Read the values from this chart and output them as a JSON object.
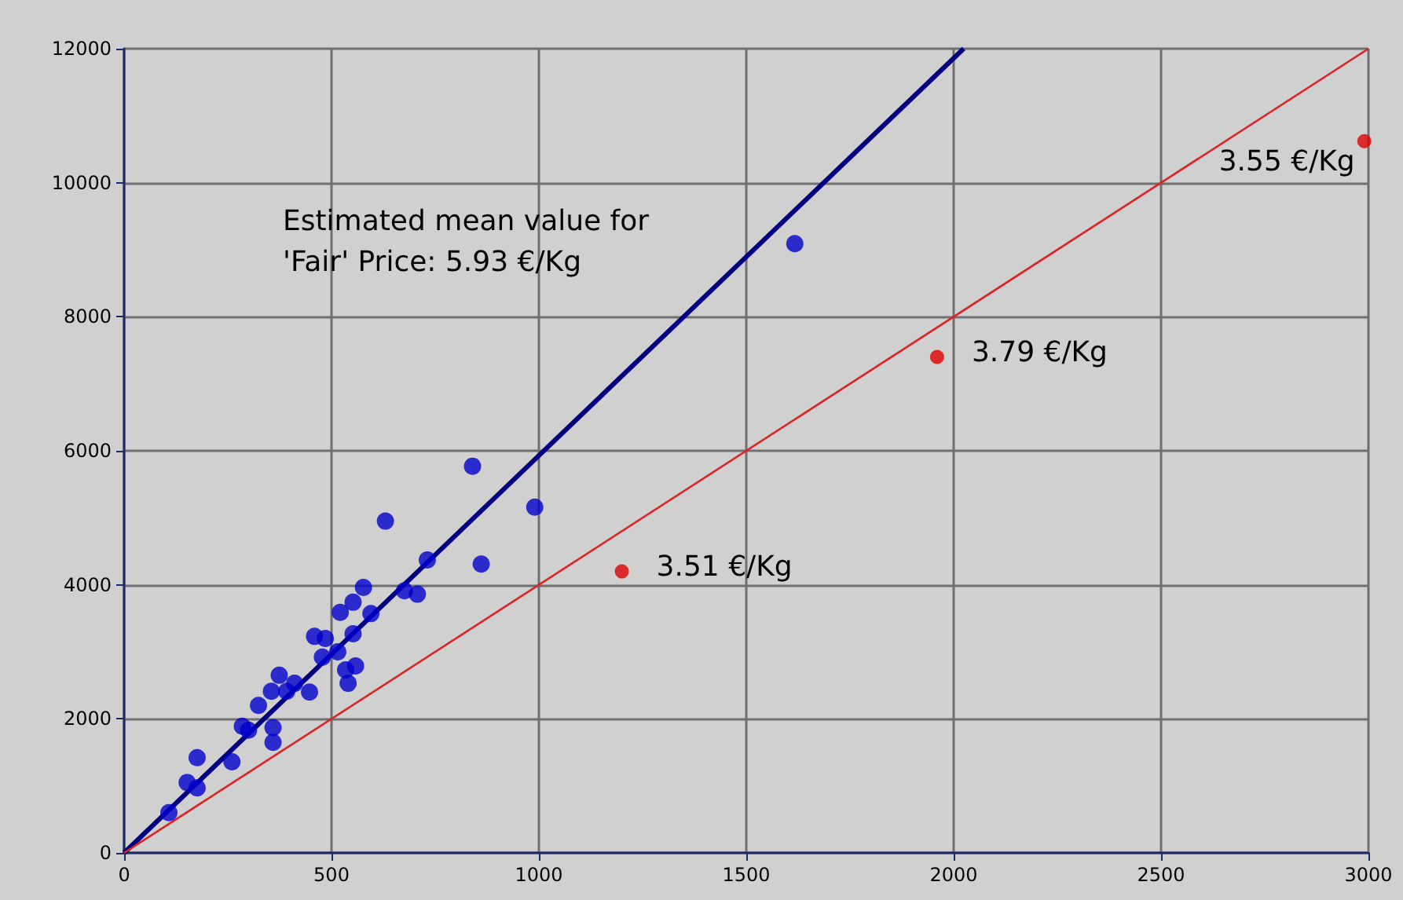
{
  "chart_data": {
    "type": "scatter",
    "xlim": [
      0,
      3000
    ],
    "xticks": [
      0,
      500,
      1000,
      1500,
      2000,
      2500,
      3000
    ],
    "ylim": [
      0,
      12000
    ],
    "yticks": [
      0,
      2000,
      4000,
      6000,
      8000,
      10000,
      12000
    ],
    "grid": true,
    "marker": "circle",
    "series": [
      {
        "type": "line",
        "color": "#000080",
        "x": [
          0,
          2024
        ],
        "values": [
          0,
          12000
        ],
        "marker": "none"
      },
      {
        "type": "line",
        "color": "#dd2222",
        "x": [
          0,
          3000
        ],
        "values": [
          0,
          12000
        ],
        "marker": "none"
      },
      {
        "color": "#0000cc",
        "x": [
          108,
          152,
          176,
          176,
          260,
          285,
          300,
          324,
          359,
          359,
          374,
          355,
          411,
          392,
          447,
          478,
          459,
          485,
          521,
          552,
          515,
          534,
          558,
          540,
          552,
          577,
          595,
          676,
          707,
          731,
          630,
          861,
          990,
          840,
          1617
        ],
        "values": [
          600,
          1050,
          970,
          1420,
          1360,
          1890,
          1830,
          2200,
          1870,
          1650,
          2650,
          2410,
          2530,
          2410,
          2400,
          2920,
          3230,
          3200,
          3590,
          3270,
          3000,
          2730,
          2790,
          2530,
          3740,
          3960,
          3570,
          3910,
          3860,
          4370,
          4950,
          4310,
          5160,
          5770,
          9090
        ]
      },
      {
        "color": "#dd0000",
        "x": [
          1200,
          1960,
          2990
        ],
        "values": [
          4200,
          7400,
          10620
        ]
      }
    ],
    "annotations": [
      "Estimated mean value for\n'Fair' Price: 5.93 €/Kg",
      {
        "text": "3.51 €/Kg",
        "x": 1200,
        "y": 4200
      },
      {
        "text": "3.79 €/Kg",
        "x": 1960,
        "y": 7400
      },
      {
        "text": "3.55 €/Kg",
        "x": 2990,
        "y": 10620
      }
    ]
  }
}
